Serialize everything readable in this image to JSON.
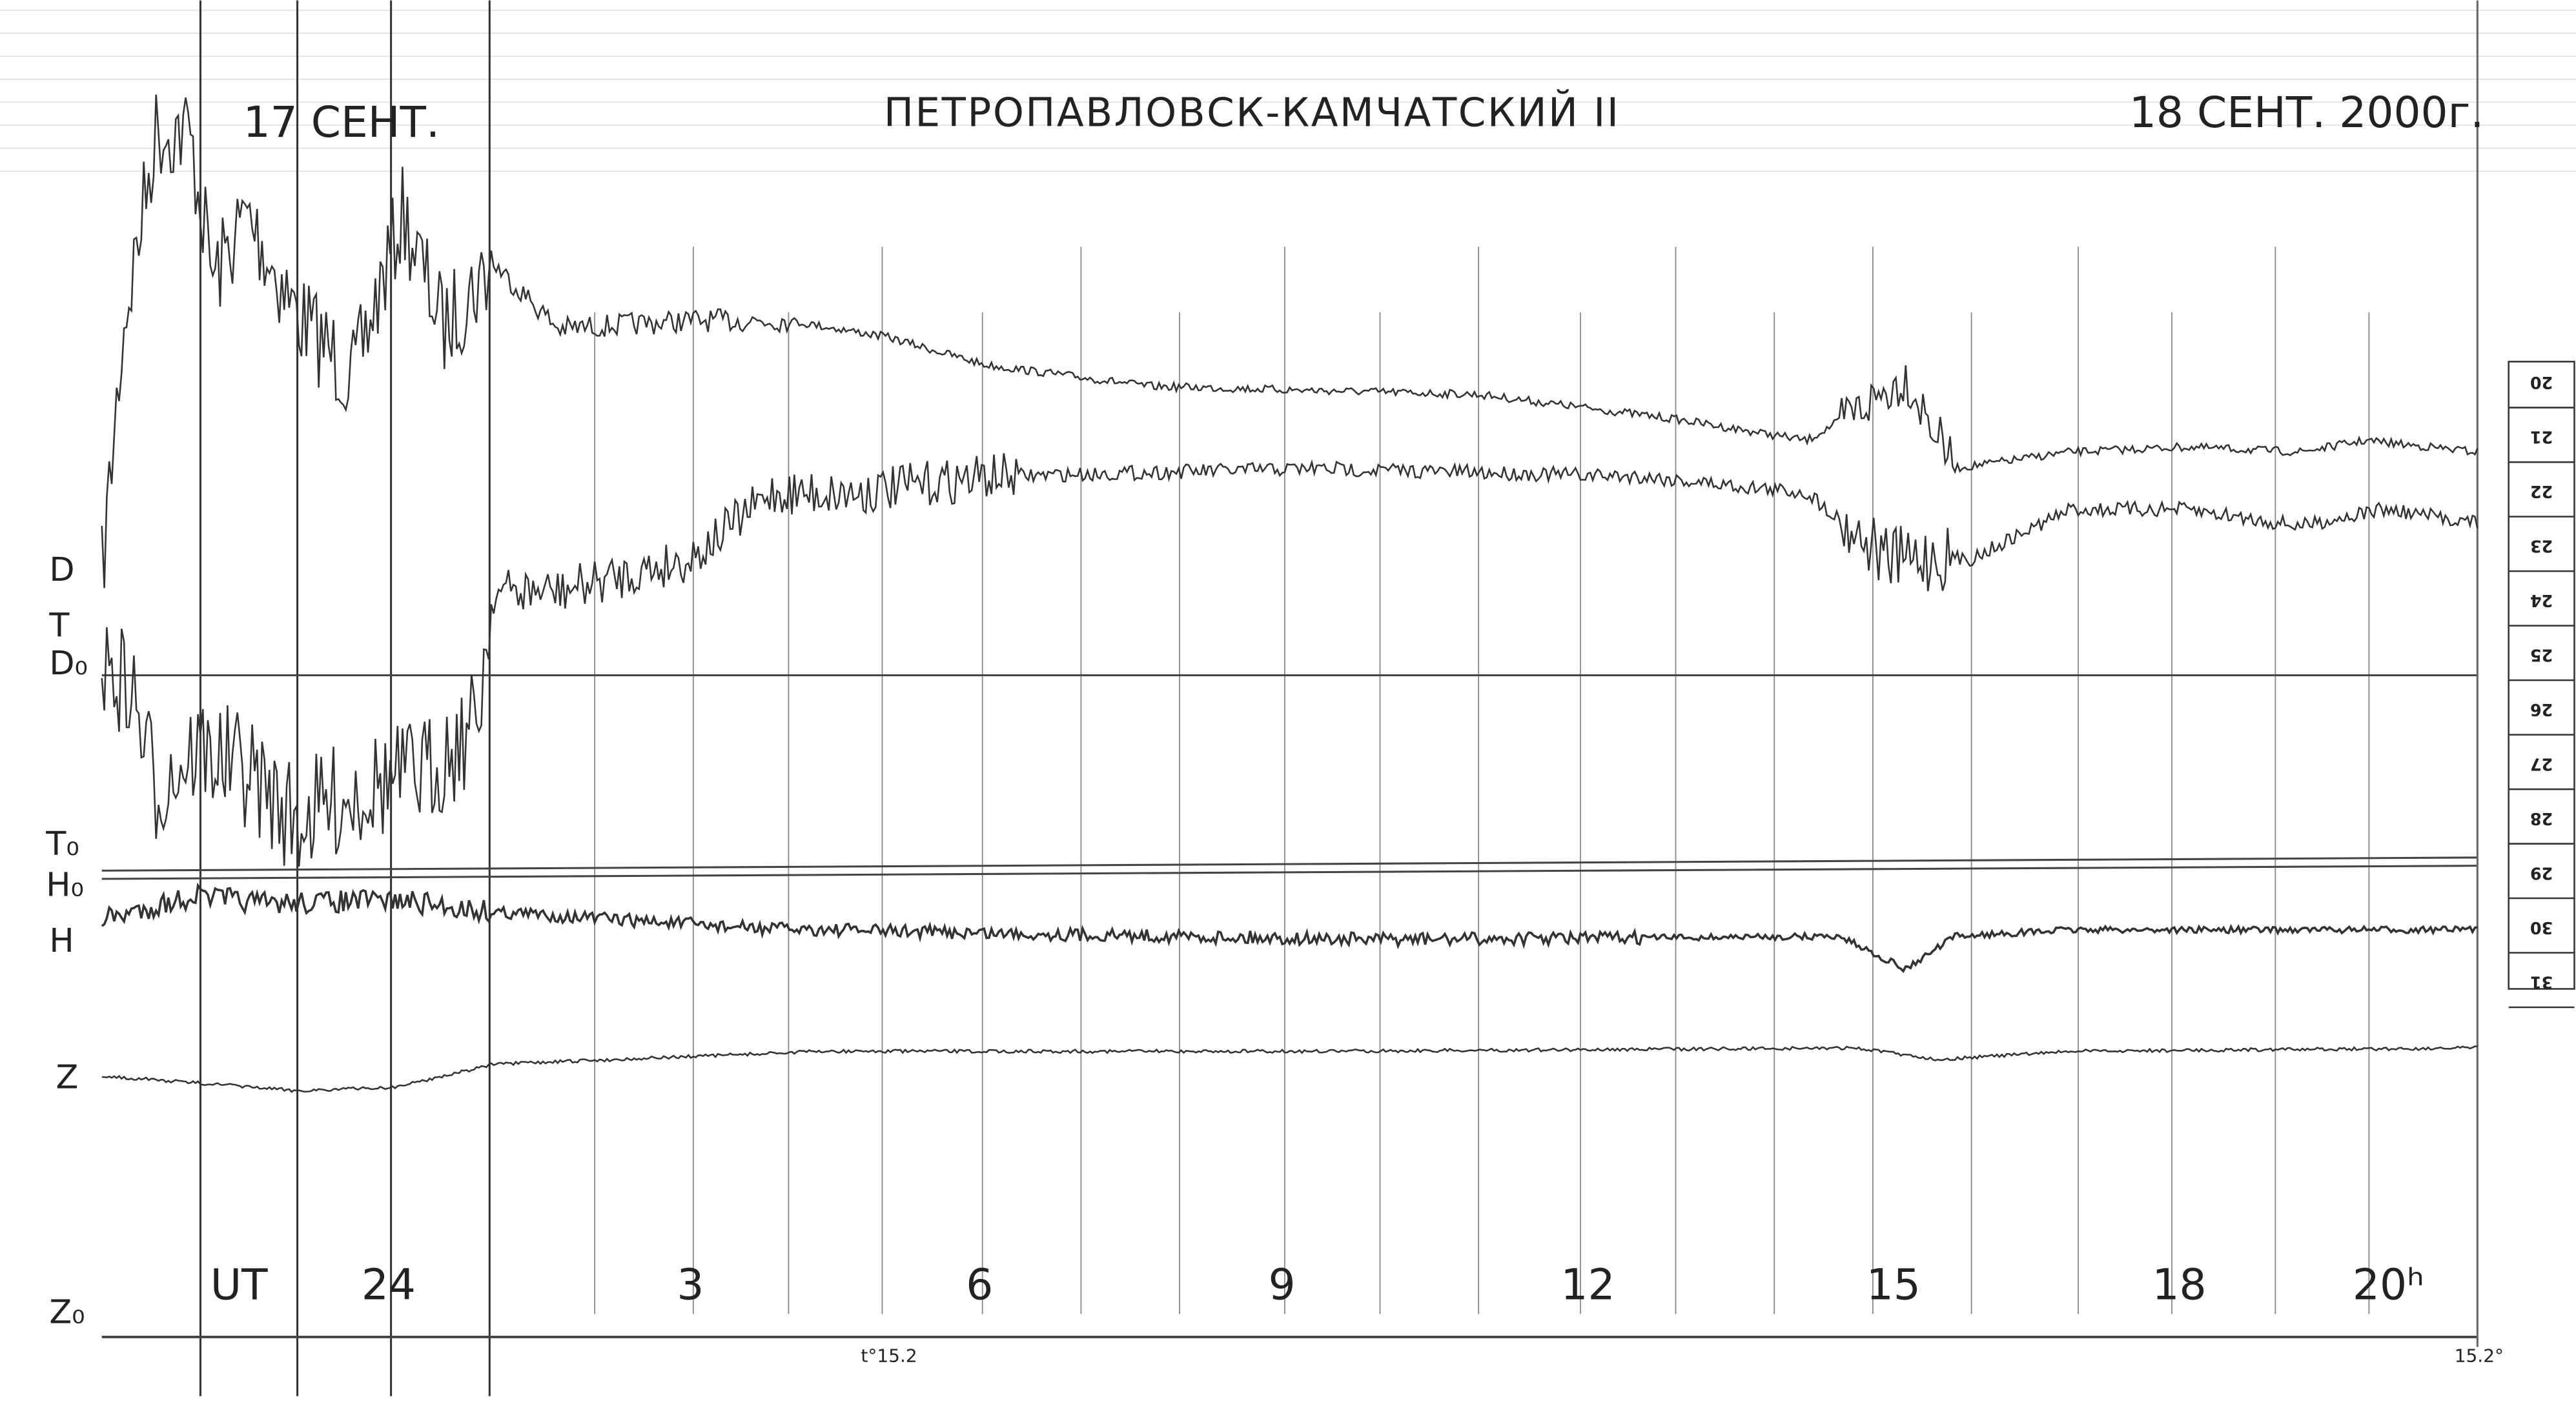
{
  "header": {
    "date_start": "17 СЕНТ.",
    "station": "ПЕТРОПАВЛОВСК-КАМЧАТСКИЙ  II",
    "date_end": "18 СЕНТ. 2000г."
  },
  "channel_labels": [
    "D",
    "T",
    "D₀",
    "T₀",
    "H₀",
    "H",
    "Z",
    "Z₀"
  ],
  "time_labels": [
    "UT",
    "24",
    "3",
    "6",
    "9",
    "12",
    "15",
    "18",
    "20ʰ"
  ],
  "temperature_marks": [
    "t°15.2",
    "15.2°"
  ],
  "scale_labels": [
    "20",
    "21",
    "22",
    "23",
    "24",
    "25",
    "26",
    "27",
    "28",
    "29",
    "30",
    "31"
  ]
}
